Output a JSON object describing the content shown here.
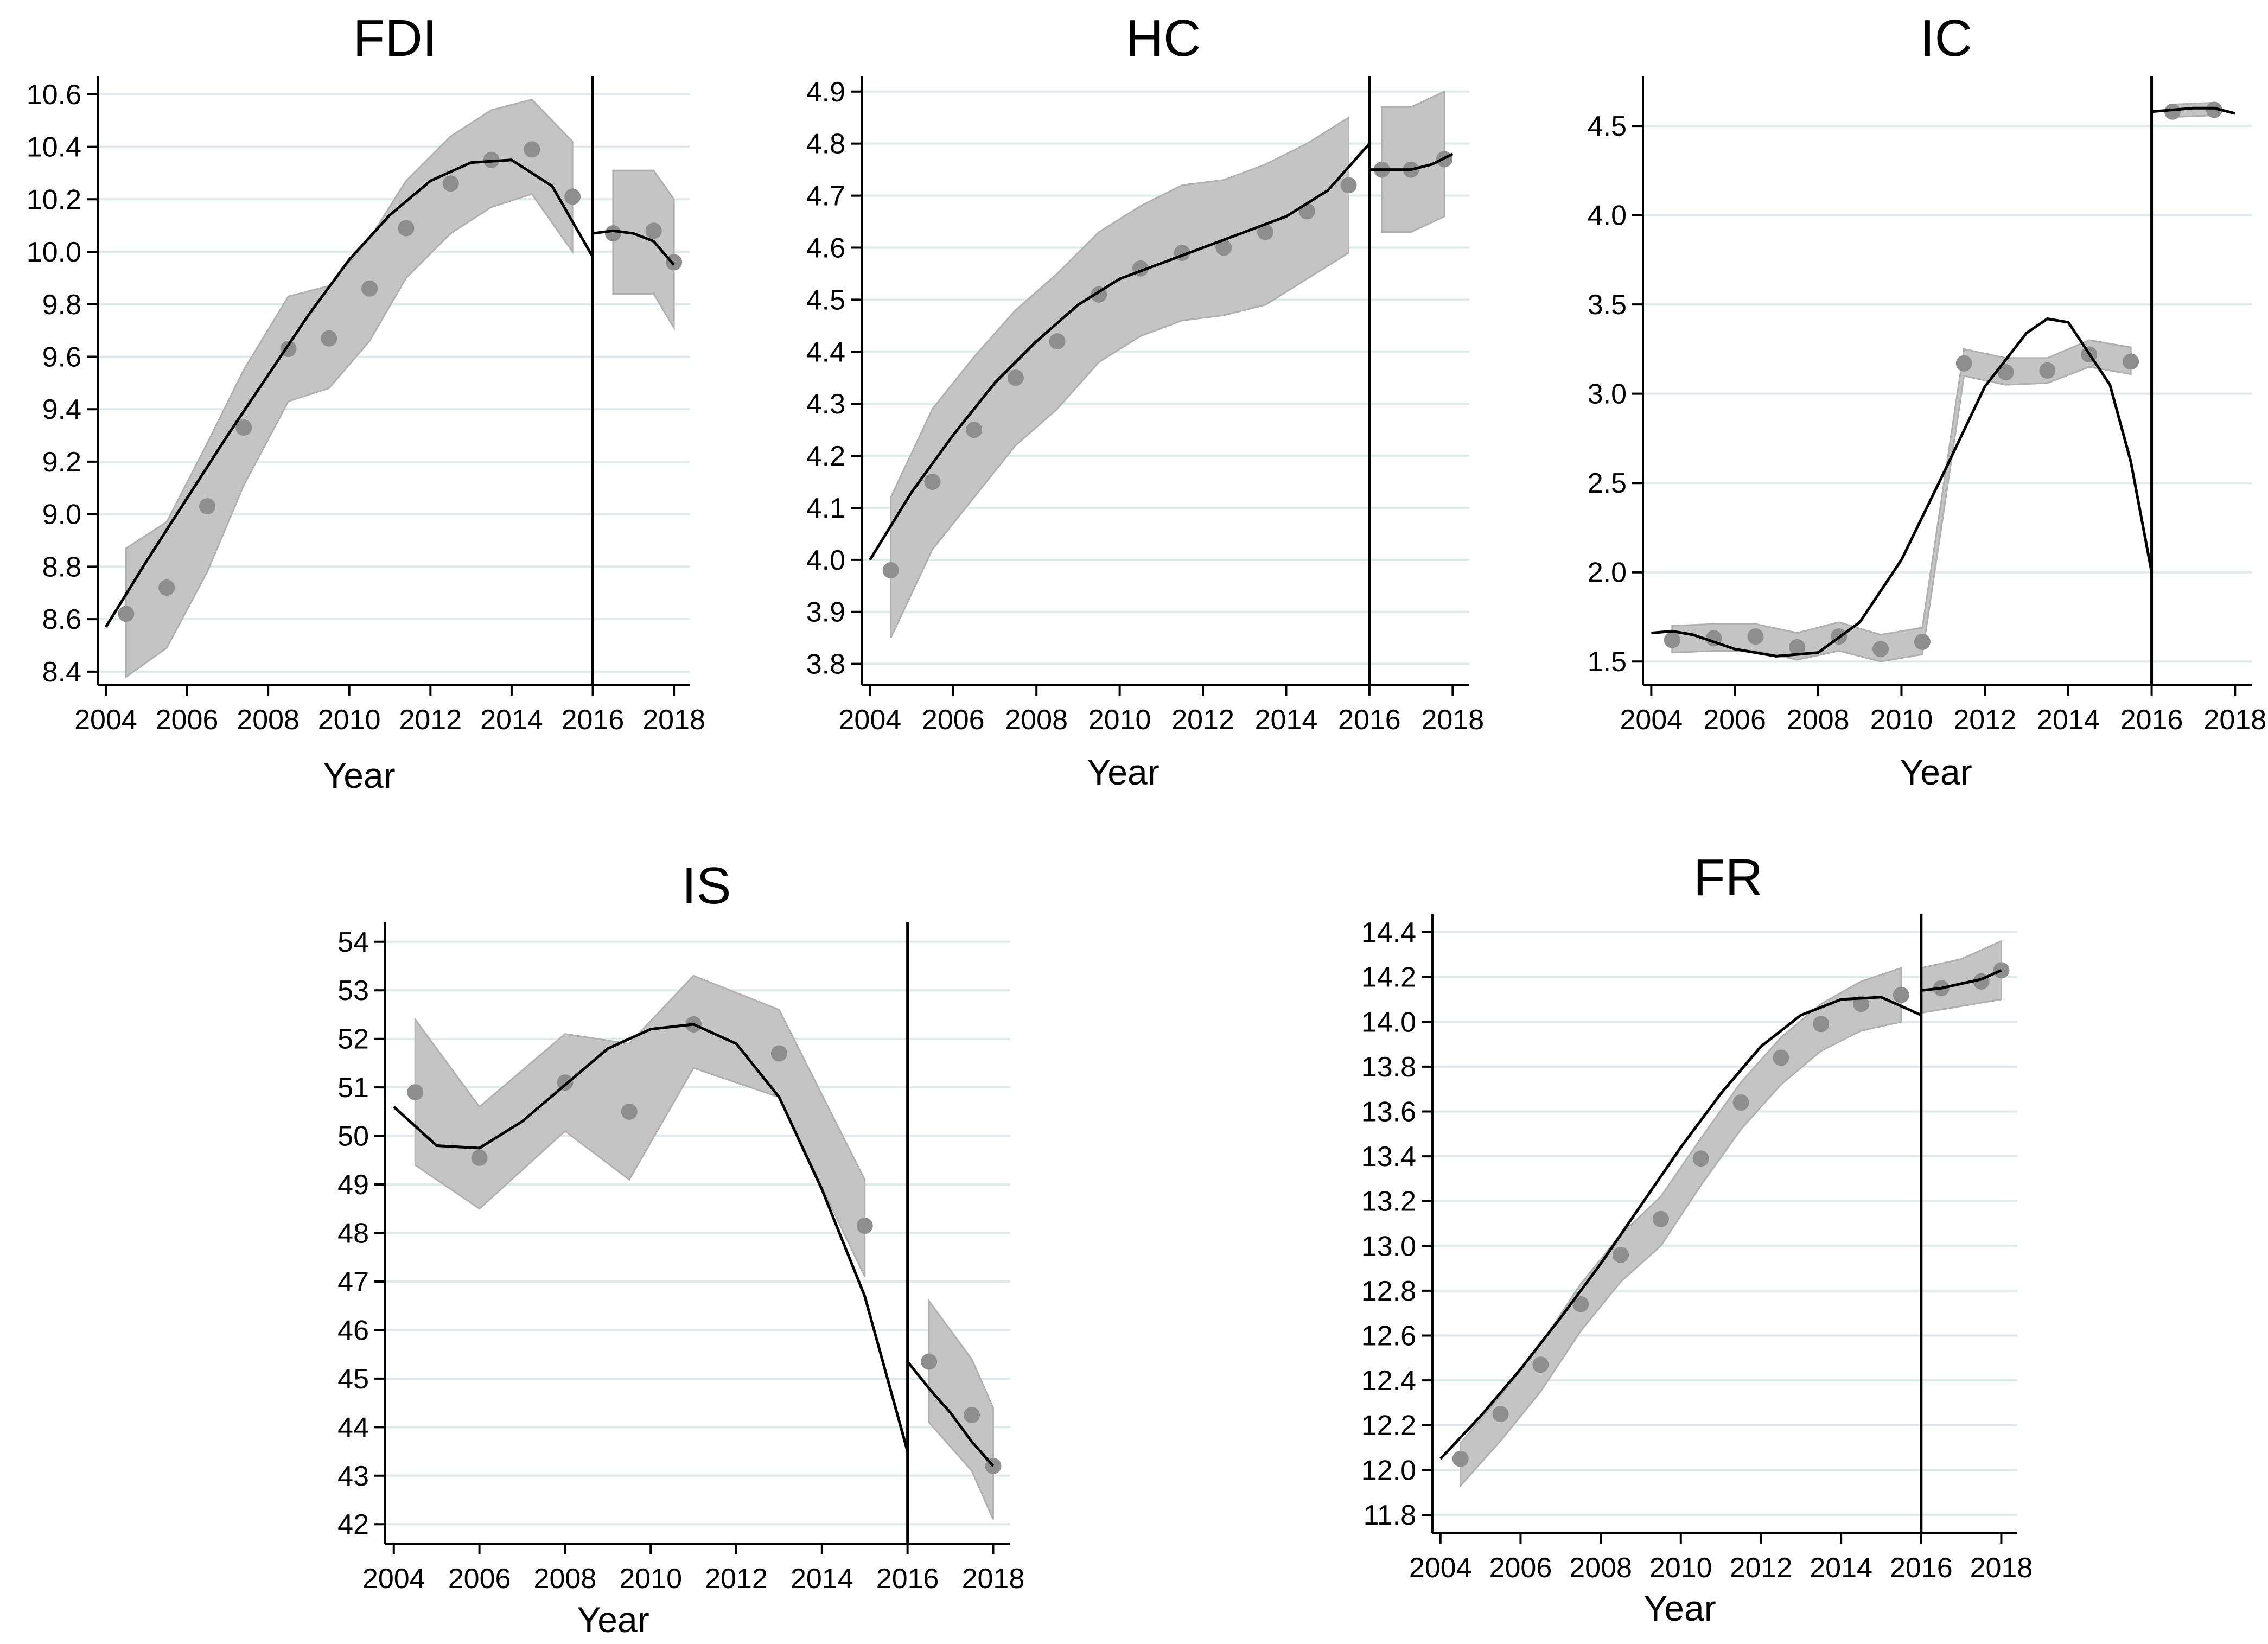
{
  "figure": {
    "colors": {
      "band": "#c4c4c4",
      "band_edge": "#b0b0b0",
      "points": "#8e8e8e",
      "grid": "#dfe9ea",
      "fit_line": "#000000",
      "axis": "#000000"
    }
  },
  "chart_data": [
    {
      "type": "scatter",
      "title": "FDI",
      "xlabel": "Year",
      "ylabel": "",
      "x_ticks": [
        "2004",
        "2006",
        "2008",
        "2010",
        "2012",
        "2014",
        "2016",
        "2018"
      ],
      "y_ticks": [
        "8.4",
        "8.6",
        "8.8",
        "9.0",
        "9.2",
        "9.4",
        "9.6",
        "9.8",
        "10.0",
        "10.2",
        "10.4",
        "10.6"
      ],
      "xlim": [
        2003.8,
        2018.4
      ],
      "ylim": [
        8.35,
        10.67
      ],
      "cutoff_x": 2016,
      "points": [
        [
          2004.5,
          8.62
        ],
        [
          2005.5,
          8.72
        ],
        [
          2006.5,
          9.03
        ],
        [
          2007.4,
          9.33
        ],
        [
          2008.5,
          9.63
        ],
        [
          2009.5,
          9.67
        ],
        [
          2010.5,
          9.86
        ],
        [
          2011.4,
          10.09
        ],
        [
          2012.5,
          10.26
        ],
        [
          2013.5,
          10.35
        ],
        [
          2014.5,
          10.39
        ],
        [
          2015.5,
          10.21
        ],
        [
          2016.5,
          10.07
        ],
        [
          2017.5,
          10.08
        ],
        [
          2018.0,
          9.96
        ]
      ],
      "band_pre": [
        [
          2004.5,
          8.38,
          8.87
        ],
        [
          2005.5,
          8.49,
          8.97
        ],
        [
          2006.5,
          8.78,
          9.27
        ],
        [
          2007.4,
          9.11,
          9.55
        ],
        [
          2008.5,
          9.43,
          9.83
        ],
        [
          2009.5,
          9.48,
          9.87
        ],
        [
          2010.5,
          9.66,
          10.05
        ],
        [
          2011.4,
          9.9,
          10.27
        ],
        [
          2012.5,
          10.07,
          10.44
        ],
        [
          2013.5,
          10.17,
          10.54
        ],
        [
          2014.5,
          10.22,
          10.58
        ],
        [
          2015.5,
          10.0,
          10.42
        ]
      ],
      "band_post": [
        [
          2016.5,
          9.84,
          10.31
        ],
        [
          2017.5,
          9.84,
          10.31
        ],
        [
          2018.0,
          9.71,
          10.2
        ]
      ],
      "fit_pre": [
        [
          2004.0,
          8.57
        ],
        [
          2005.0,
          8.82
        ],
        [
          2006.0,
          9.06
        ],
        [
          2007.0,
          9.3
        ],
        [
          2008.0,
          9.53
        ],
        [
          2009.0,
          9.76
        ],
        [
          2010.0,
          9.97
        ],
        [
          2011.0,
          10.14
        ],
        [
          2012.0,
          10.27
        ],
        [
          2013.0,
          10.34
        ],
        [
          2014.0,
          10.35
        ],
        [
          2015.0,
          10.25
        ],
        [
          2016.0,
          9.98
        ]
      ],
      "fit_post": [
        [
          2016.0,
          10.07
        ],
        [
          2016.5,
          10.08
        ],
        [
          2017.0,
          10.07
        ],
        [
          2017.5,
          10.04
        ],
        [
          2018.0,
          9.95
        ]
      ]
    },
    {
      "type": "scatter",
      "title": "HC",
      "xlabel": "Year",
      "ylabel": "",
      "x_ticks": [
        "2004",
        "2006",
        "2008",
        "2010",
        "2012",
        "2014",
        "2016",
        "2018"
      ],
      "y_ticks": [
        "3.8",
        "3.9",
        "4.0",
        "4.1",
        "4.2",
        "4.3",
        "4.4",
        "4.5",
        "4.6",
        "4.7",
        "4.8",
        "4.9"
      ],
      "xlim": [
        2003.8,
        2018.4
      ],
      "ylim": [
        3.76,
        4.93
      ],
      "cutoff_x": 2016,
      "points": [
        [
          2004.5,
          3.98
        ],
        [
          2005.5,
          4.15
        ],
        [
          2006.5,
          4.25
        ],
        [
          2007.5,
          4.35
        ],
        [
          2008.5,
          4.42
        ],
        [
          2009.5,
          4.51
        ],
        [
          2010.5,
          4.56
        ],
        [
          2011.5,
          4.59
        ],
        [
          2012.5,
          4.6
        ],
        [
          2013.5,
          4.63
        ],
        [
          2014.5,
          4.67
        ],
        [
          2015.5,
          4.72
        ],
        [
          2016.3,
          4.75
        ],
        [
          2017.0,
          4.75
        ],
        [
          2017.8,
          4.77
        ]
      ],
      "band_pre": [
        [
          2004.5,
          3.85,
          4.12
        ],
        [
          2005.5,
          4.02,
          4.29
        ],
        [
          2006.5,
          4.12,
          4.39
        ],
        [
          2007.5,
          4.22,
          4.48
        ],
        [
          2008.5,
          4.29,
          4.55
        ],
        [
          2009.5,
          4.38,
          4.63
        ],
        [
          2010.5,
          4.43,
          4.68
        ],
        [
          2011.5,
          4.46,
          4.72
        ],
        [
          2012.5,
          4.47,
          4.73
        ],
        [
          2013.5,
          4.49,
          4.76
        ],
        [
          2014.5,
          4.54,
          4.8
        ],
        [
          2015.5,
          4.59,
          4.85
        ]
      ],
      "band_post": [
        [
          2016.3,
          4.63,
          4.87
        ],
        [
          2017.0,
          4.63,
          4.87
        ],
        [
          2017.8,
          4.66,
          4.9
        ]
      ],
      "fit_pre": [
        [
          2004.0,
          4.0
        ],
        [
          2005.0,
          4.13
        ],
        [
          2006.0,
          4.24
        ],
        [
          2007.0,
          4.34
        ],
        [
          2008.0,
          4.42
        ],
        [
          2009.0,
          4.49
        ],
        [
          2010.0,
          4.54
        ],
        [
          2011.0,
          4.57
        ],
        [
          2012.0,
          4.6
        ],
        [
          2013.0,
          4.63
        ],
        [
          2014.0,
          4.66
        ],
        [
          2015.0,
          4.71
        ],
        [
          2016.0,
          4.8
        ]
      ],
      "fit_post": [
        [
          2016.0,
          4.75
        ],
        [
          2016.5,
          4.75
        ],
        [
          2017.0,
          4.75
        ],
        [
          2017.5,
          4.76
        ],
        [
          2018.0,
          4.78
        ]
      ]
    },
    {
      "type": "scatter",
      "title": "IC",
      "xlabel": "Year",
      "ylabel": "",
      "x_ticks": [
        "2004",
        "2006",
        "2008",
        "2010",
        "2012",
        "2014",
        "2016",
        "2018"
      ],
      "y_ticks": [
        "1.5",
        "2.0",
        "2.5",
        "3.0",
        "3.5",
        "4.0",
        "4.5"
      ],
      "xlim": [
        2003.8,
        2018.4
      ],
      "ylim": [
        1.37,
        4.78
      ],
      "cutoff_x": 2016,
      "points": [
        [
          2004.5,
          1.62
        ],
        [
          2005.5,
          1.63
        ],
        [
          2006.5,
          1.64
        ],
        [
          2007.5,
          1.58
        ],
        [
          2008.5,
          1.64
        ],
        [
          2009.5,
          1.57
        ],
        [
          2010.5,
          1.61
        ],
        [
          2011.5,
          3.17
        ],
        [
          2012.5,
          3.12
        ],
        [
          2013.5,
          3.13
        ],
        [
          2014.5,
          3.22
        ],
        [
          2015.5,
          3.18
        ],
        [
          2016.5,
          4.58
        ],
        [
          2017.5,
          4.59
        ]
      ],
      "band_pre": [
        [
          2004.5,
          1.55,
          1.7
        ],
        [
          2005.5,
          1.56,
          1.71
        ],
        [
          2006.5,
          1.56,
          1.71
        ],
        [
          2007.5,
          1.51,
          1.66
        ],
        [
          2008.5,
          1.56,
          1.72
        ],
        [
          2009.5,
          1.5,
          1.65
        ],
        [
          2010.5,
          1.54,
          1.69
        ],
        [
          2011.5,
          3.1,
          3.25
        ],
        [
          2012.5,
          3.05,
          3.2
        ],
        [
          2013.5,
          3.06,
          3.2
        ],
        [
          2014.5,
          3.15,
          3.3
        ],
        [
          2015.5,
          3.11,
          3.26
        ]
      ],
      "band_post": [
        [
          2016.5,
          4.55,
          4.62
        ],
        [
          2017.5,
          4.56,
          4.63
        ]
      ],
      "fit_pre": [
        [
          2004.0,
          1.66
        ],
        [
          2004.5,
          1.67
        ],
        [
          2005.0,
          1.65
        ],
        [
          2006.0,
          1.57
        ],
        [
          2007.0,
          1.53
        ],
        [
          2008.0,
          1.55
        ],
        [
          2009.0,
          1.72
        ],
        [
          2010.0,
          2.07
        ],
        [
          2011.0,
          2.55
        ],
        [
          2012.0,
          3.04
        ],
        [
          2013.0,
          3.34
        ],
        [
          2013.5,
          3.42
        ],
        [
          2014.0,
          3.4
        ],
        [
          2015.0,
          3.05
        ],
        [
          2015.5,
          2.62
        ],
        [
          2016.0,
          2.0
        ]
      ],
      "fit_post": [
        [
          2016.0,
          4.58
        ],
        [
          2016.5,
          4.59
        ],
        [
          2017.0,
          4.6
        ],
        [
          2017.5,
          4.6
        ],
        [
          2018.0,
          4.57
        ]
      ]
    },
    {
      "type": "scatter",
      "title": "IS",
      "xlabel": "Year",
      "ylabel": "",
      "x_ticks": [
        "2004",
        "2006",
        "2008",
        "2010",
        "2012",
        "2014",
        "2016",
        "2018"
      ],
      "y_ticks": [
        "42",
        "43",
        "44",
        "45",
        "46",
        "47",
        "48",
        "49",
        "50",
        "51",
        "52",
        "53",
        "54"
      ],
      "xlim": [
        2003.8,
        2018.4
      ],
      "ylim": [
        41.6,
        54.4
      ],
      "cutoff_x": 2016,
      "points": [
        [
          2004.5,
          50.9
        ],
        [
          2006.0,
          49.55
        ],
        [
          2008.0,
          51.1
        ],
        [
          2009.5,
          50.5
        ],
        [
          2011.0,
          52.3
        ],
        [
          2013.0,
          51.7
        ],
        [
          2015.0,
          48.15
        ],
        [
          2016.5,
          45.35
        ],
        [
          2017.5,
          44.25
        ],
        [
          2018.0,
          43.2
        ]
      ],
      "band_pre": [
        [
          2004.5,
          49.4,
          52.4
        ],
        [
          2006.0,
          48.5,
          50.6
        ],
        [
          2008.0,
          50.1,
          52.1
        ],
        [
          2009.5,
          49.1,
          51.9
        ],
        [
          2011.0,
          51.4,
          53.3
        ],
        [
          2013.0,
          50.8,
          52.6
        ],
        [
          2015.0,
          47.1,
          49.1
        ]
      ],
      "band_post": [
        [
          2016.5,
          44.1,
          46.6
        ],
        [
          2017.5,
          43.1,
          45.4
        ],
        [
          2018.0,
          42.1,
          44.4
        ]
      ],
      "fit_pre": [
        [
          2004.0,
          50.6
        ],
        [
          2005.0,
          49.8
        ],
        [
          2006.0,
          49.75
        ],
        [
          2007.0,
          50.3
        ],
        [
          2008.0,
          51.05
        ],
        [
          2009.0,
          51.8
        ],
        [
          2010.0,
          52.2
        ],
        [
          2011.0,
          52.3
        ],
        [
          2012.0,
          51.9
        ],
        [
          2013.0,
          50.8
        ],
        [
          2014.0,
          48.9
        ],
        [
          2015.0,
          46.7
        ],
        [
          2015.5,
          45.1
        ],
        [
          2016.0,
          43.5
        ]
      ],
      "fit_post": [
        [
          2016.0,
          45.35
        ],
        [
          2016.5,
          44.8
        ],
        [
          2017.0,
          44.3
        ],
        [
          2017.5,
          43.7
        ],
        [
          2018.0,
          43.2
        ]
      ]
    },
    {
      "type": "scatter",
      "title": "FR",
      "xlabel": "Year",
      "ylabel": "",
      "x_ticks": [
        "2004",
        "2006",
        "2008",
        "2010",
        "2012",
        "2014",
        "2016",
        "2018"
      ],
      "y_ticks": [
        "11.8",
        "12.0",
        "12.2",
        "12.4",
        "12.6",
        "12.8",
        "13.0",
        "13.2",
        "13.4",
        "13.6",
        "13.8",
        "14.0",
        "14.2",
        "14.4"
      ],
      "xlim": [
        2003.8,
        2018.4
      ],
      "ylim": [
        11.72,
        14.48
      ],
      "cutoff_x": 2016,
      "points": [
        [
          2004.5,
          12.05
        ],
        [
          2005.5,
          12.25
        ],
        [
          2006.5,
          12.47
        ],
        [
          2007.5,
          12.74
        ],
        [
          2008.5,
          12.96
        ],
        [
          2009.5,
          13.12
        ],
        [
          2010.5,
          13.39
        ],
        [
          2011.5,
          13.64
        ],
        [
          2012.5,
          13.84
        ],
        [
          2013.5,
          13.99
        ],
        [
          2014.5,
          14.08
        ],
        [
          2015.5,
          14.12
        ],
        [
          2016.5,
          14.15
        ],
        [
          2017.5,
          14.18
        ],
        [
          2018.0,
          14.23
        ]
      ],
      "band_pre": [
        [
          2004.5,
          11.93,
          12.12
        ],
        [
          2005.5,
          12.13,
          12.33
        ],
        [
          2006.5,
          12.35,
          12.56
        ],
        [
          2007.5,
          12.62,
          12.83
        ],
        [
          2008.5,
          12.84,
          13.05
        ],
        [
          2009.5,
          13.0,
          13.22
        ],
        [
          2010.5,
          13.27,
          13.48
        ],
        [
          2011.5,
          13.52,
          13.73
        ],
        [
          2012.5,
          13.72,
          13.93
        ],
        [
          2013.5,
          13.87,
          14.08
        ],
        [
          2014.5,
          13.96,
          14.18
        ],
        [
          2015.5,
          14.0,
          14.24
        ]
      ],
      "band_post": [
        [
          2016.0,
          14.04,
          14.24
        ],
        [
          2017.0,
          14.07,
          14.28
        ],
        [
          2018.0,
          14.1,
          14.36
        ]
      ],
      "fit_pre": [
        [
          2004.0,
          12.05
        ],
        [
          2005.0,
          12.24
        ],
        [
          2006.0,
          12.45
        ],
        [
          2007.0,
          12.68
        ],
        [
          2008.0,
          12.92
        ],
        [
          2009.0,
          13.18
        ],
        [
          2010.0,
          13.44
        ],
        [
          2011.0,
          13.68
        ],
        [
          2012.0,
          13.89
        ],
        [
          2013.0,
          14.03
        ],
        [
          2014.0,
          14.1
        ],
        [
          2015.0,
          14.11
        ],
        [
          2016.0,
          14.03
        ]
      ],
      "fit_post": [
        [
          2016.0,
          14.14
        ],
        [
          2016.5,
          14.15
        ],
        [
          2017.0,
          14.17
        ],
        [
          2017.5,
          14.19
        ],
        [
          2018.0,
          14.23
        ]
      ]
    }
  ]
}
